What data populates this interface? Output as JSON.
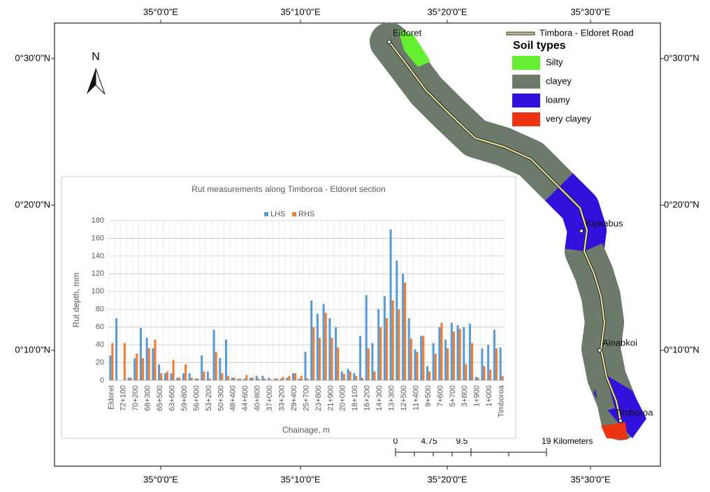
{
  "map": {
    "top_labels": [
      "35°0'0\"E",
      "35°10'0\"E",
      "35°20'0\"E",
      "35°30'0\"E"
    ],
    "bottom_labels": [
      "35°0'0\"E",
      "35°10'0\"E",
      "35°20'0\"E",
      "35°30'0\"E"
    ],
    "left_labels": [
      "0°30'0\"N",
      "0°20'0\"N",
      "0°10'0\"N"
    ],
    "right_labels": [
      "0°30'0\"N",
      "0°20'0\"N",
      "0°10'0\"N"
    ],
    "north": "N",
    "road_label": "Timbora - Eldoret Road",
    "legend_title": "Soil types",
    "legend": [
      {
        "label": "Silty",
        "color": "#66ee33"
      },
      {
        "label": "clayey",
        "color": "#6b7a6b"
      },
      {
        "label": "loamy",
        "color": "#3311dd"
      },
      {
        "label": "very clayey",
        "color": "#ee3311"
      }
    ],
    "towns": [
      "Eldoret",
      "Kipkabus",
      "Ainabkoi",
      "Timboroa"
    ],
    "scale": [
      "0",
      "4.75",
      "9.5",
      "19 Kilometers"
    ]
  },
  "chart_data": {
    "type": "bar",
    "title": "Rut measurements along Timboroa - Eldoret section",
    "x_label": "Chainage, m",
    "y_label": "Rut depth, mm",
    "ylim": [
      0,
      180
    ],
    "yticks": [
      0,
      20,
      40,
      60,
      80,
      100,
      120,
      140,
      160,
      180
    ],
    "grid": true,
    "categories": [
      "Eldoret",
      null,
      "72+100",
      null,
      "70+200",
      null,
      "68+300",
      null,
      "65+500",
      null,
      "63+600",
      null,
      "59+800",
      null,
      "56+000",
      null,
      "53+200",
      null,
      "50+300",
      null,
      "48+400",
      null,
      "44+600",
      null,
      "40+800",
      null,
      "37+000",
      null,
      "33+200",
      null,
      "29+400",
      null,
      "25+700",
      null,
      "23+800",
      null,
      "21+900",
      null,
      "20+000",
      null,
      "18+100",
      null,
      "16+200",
      null,
      "14+300",
      null,
      "13+300",
      null,
      "12+500",
      null,
      "11+400",
      null,
      "9+500",
      null,
      "7+600",
      null,
      "5+700",
      null,
      "3+800",
      null,
      "1+900",
      null,
      "1+000",
      null,
      "Timboroa"
    ],
    "series": [
      {
        "name": "LHS",
        "color": "#5b9bd5",
        "values": [
          28,
          70,
          0,
          3,
          25,
          59,
          48,
          36,
          18,
          8,
          8,
          3,
          8,
          8,
          2,
          28,
          10,
          57,
          25,
          46,
          3,
          2,
          2,
          3,
          5,
          5,
          3,
          2,
          2,
          3,
          8,
          2,
          32,
          90,
          75,
          86,
          70,
          60,
          10,
          13,
          8,
          50,
          96,
          42,
          80,
          95,
          170,
          135,
          120,
          70,
          35,
          50,
          16,
          42,
          60,
          46,
          65,
          62,
          60,
          64,
          4,
          36,
          40,
          57,
          37
        ]
      },
      {
        "name": "RHS",
        "color": "#ed7d31",
        "values": [
          42,
          0,
          42,
          3,
          30,
          25,
          36,
          46,
          8,
          10,
          23,
          3,
          18,
          3,
          2,
          10,
          2,
          32,
          8,
          5,
          3,
          2,
          6,
          3,
          2,
          2,
          1,
          2,
          4,
          5,
          8,
          5,
          2,
          60,
          48,
          76,
          48,
          37,
          7,
          10,
          5,
          3,
          36,
          10,
          60,
          70,
          90,
          80,
          110,
          47,
          32,
          50,
          10,
          30,
          65,
          36,
          55,
          58,
          18,
          42,
          3,
          16,
          12,
          36,
          5
        ]
      }
    ]
  }
}
